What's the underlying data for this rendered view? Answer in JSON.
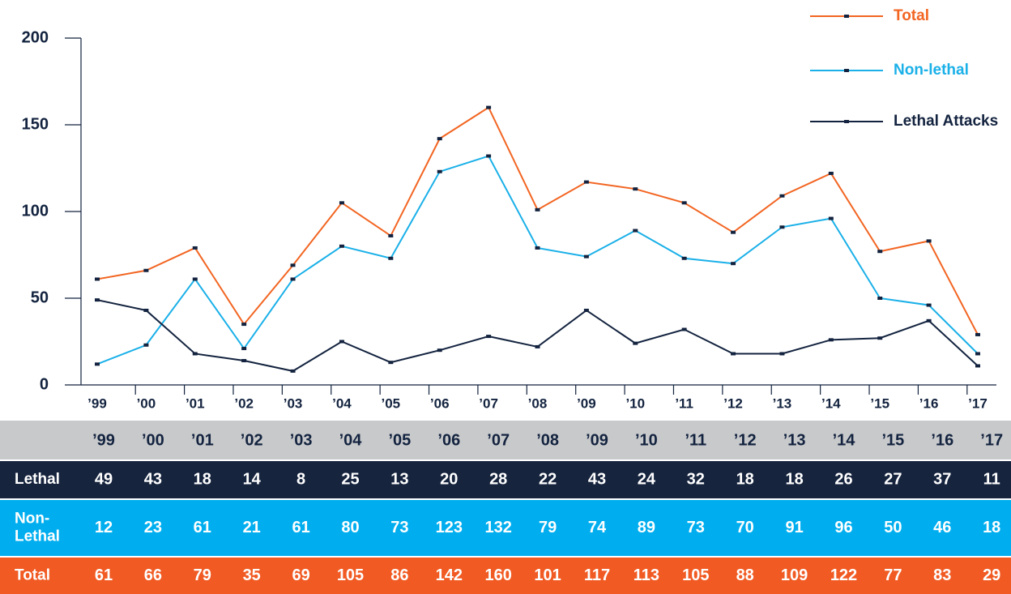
{
  "chart_data": {
    "type": "line",
    "categories": [
      "’99",
      "’00",
      "’01",
      "’02",
      "’03",
      "’04",
      "’05",
      "’06",
      "’07",
      "’08",
      "’09",
      "’10",
      "’11",
      "’12",
      "’13",
      "’14",
      "’15",
      "’16",
      "’17"
    ],
    "series": [
      {
        "name": "Total",
        "color": "#f26522",
        "values": [
          61,
          66,
          79,
          35,
          69,
          105,
          86,
          142,
          160,
          101,
          117,
          113,
          105,
          88,
          109,
          122,
          77,
          83,
          29
        ]
      },
      {
        "name": "Non-lethal",
        "color": "#1ab0e8",
        "values": [
          12,
          23,
          61,
          21,
          61,
          80,
          73,
          123,
          132,
          79,
          74,
          89,
          73,
          70,
          91,
          96,
          50,
          46,
          18
        ]
      },
      {
        "name": "Lethal Attacks",
        "color": "#13233f",
        "values": [
          49,
          43,
          18,
          14,
          8,
          25,
          13,
          20,
          28,
          22,
          43,
          24,
          32,
          18,
          18,
          26,
          27,
          37,
          11
        ]
      }
    ],
    "ylim": [
      0,
      200
    ],
    "yticks": [
      0,
      50,
      100,
      150,
      200
    ],
    "table_row_labels": [
      "Lethal",
      "Non-Lethal",
      "Total"
    ]
  }
}
